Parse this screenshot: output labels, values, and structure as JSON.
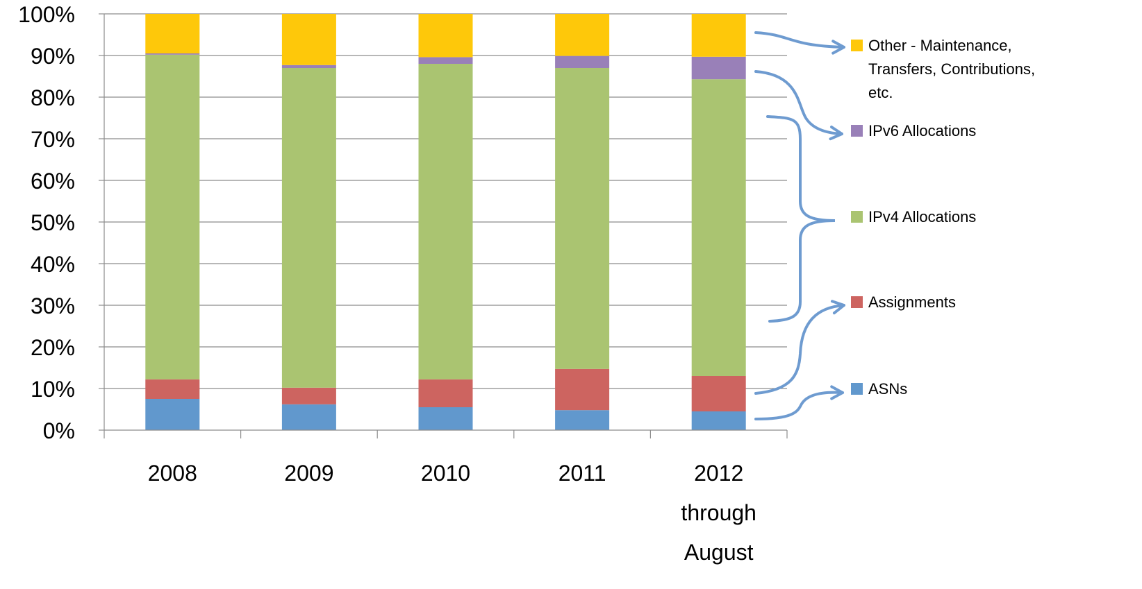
{
  "chart_data": {
    "type": "bar",
    "stacked": true,
    "percent": true,
    "categories": [
      [
        "2008"
      ],
      [
        "2009"
      ],
      [
        "2010"
      ],
      [
        "2011"
      ],
      [
        "2012",
        "through",
        "August"
      ]
    ],
    "series": [
      {
        "name": "ASNs",
        "color": "#6198CD",
        "values": [
          7.5,
          6.2,
          5.5,
          4.8,
          4.5
        ]
      },
      {
        "name": "Assignments",
        "color": "#CD6460",
        "values": [
          4.7,
          4.0,
          6.7,
          9.9,
          8.5
        ]
      },
      {
        "name": "IPv4 Allocations",
        "color": "#AAC471",
        "values": [
          78.0,
          76.8,
          75.8,
          72.3,
          71.3
        ]
      },
      {
        "name": "IPv6 Allocations",
        "color": "#9980B8",
        "values": [
          0.3,
          0.7,
          1.6,
          2.9,
          5.4
        ]
      },
      {
        "name": "Other - Maintenance, Transfers, Contributions, etc.",
        "color": "#FEC80A",
        "values": [
          9.5,
          12.3,
          10.4,
          10.1,
          10.3
        ]
      }
    ],
    "legend": [
      {
        "lines": [
          "Other - Maintenance,",
          "Transfers, Contributions,",
          "etc."
        ],
        "color": "#FEC80A"
      },
      {
        "lines": [
          "IPv6 Allocations"
        ],
        "color": "#9980B8"
      },
      {
        "lines": [
          "IPv4 Allocations"
        ],
        "color": "#AAC471"
      },
      {
        "lines": [
          "Assignments"
        ],
        "color": "#CD6460"
      },
      {
        "lines": [
          "ASNs"
        ],
        "color": "#6198CD"
      }
    ],
    "yticks": [
      "0%",
      "10%",
      "20%",
      "30%",
      "40%",
      "50%",
      "60%",
      "70%",
      "80%",
      "90%",
      "100%"
    ],
    "ylim": [
      0,
      100
    ],
    "grid": true,
    "legend_position": "right",
    "arrow_color": "#6E9BD0"
  }
}
